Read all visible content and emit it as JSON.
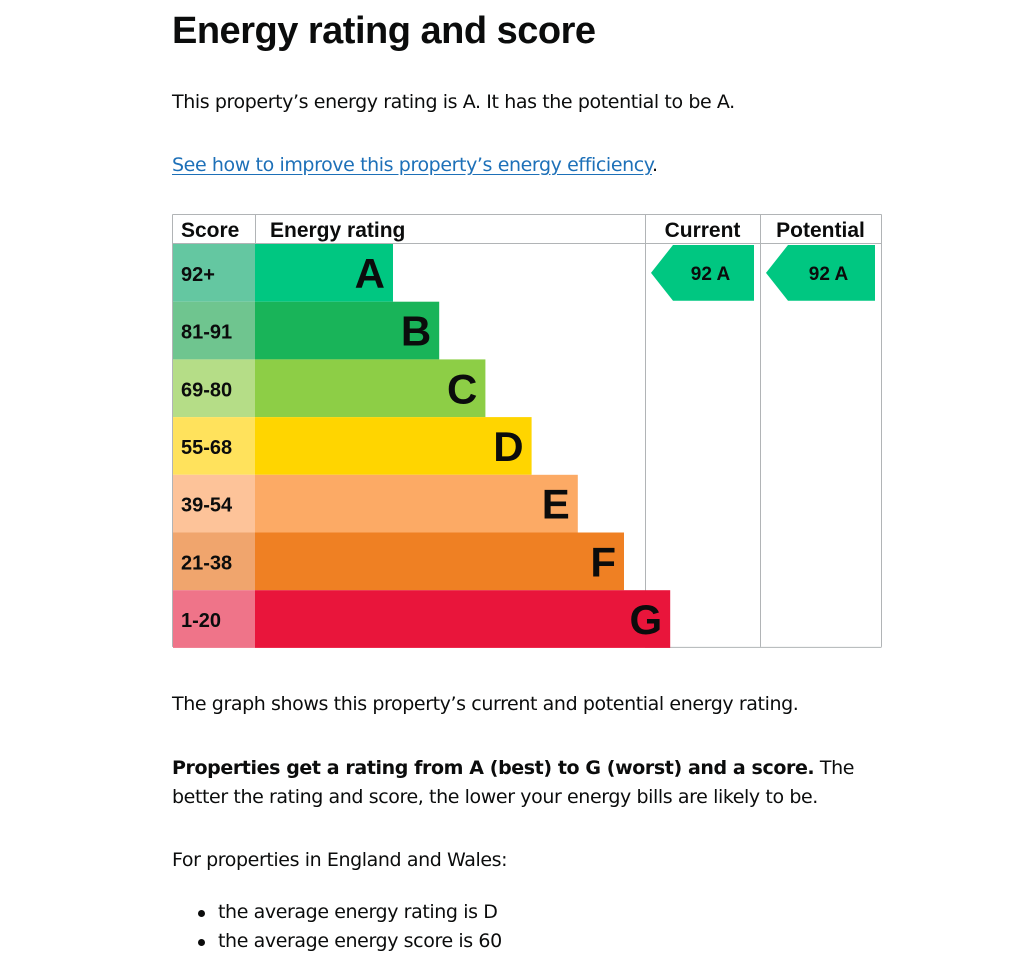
{
  "page": {
    "title": "Energy rating and score",
    "intro": "This property’s energy rating is A. It has the potential to be A.",
    "improve_link": "See how to improve this property’s energy efficiency",
    "improve_link_suffix": ".",
    "graph_caption": "The graph shows this property’s current and potential energy rating.",
    "ratings_bold": "Properties get a rating from A (best) to G (worst) and a score.",
    "ratings_rest": " The better the rating and score, the lower your energy bills are likely to be.",
    "regional_intro": "For properties in England and Wales:",
    "bullets": [
      "the average energy rating is D",
      "the average energy score is 60"
    ]
  },
  "chart_data": {
    "type": "table",
    "headers": {
      "score": "Score",
      "rating": "Energy rating",
      "current": "Current",
      "potential": "Potential"
    },
    "bands": [
      {
        "letter": "A",
        "range": "92+",
        "color": "#00c781",
        "score_bg": "#64c7a1"
      },
      {
        "letter": "B",
        "range": "81-91",
        "color": "#19b459",
        "score_bg": "#6fc58f"
      },
      {
        "letter": "C",
        "range": "69-80",
        "color": "#8dce46",
        "score_bg": "#b5dd87"
      },
      {
        "letter": "D",
        "range": "55-68",
        "color": "#ffd500",
        "score_bg": "#ffe25c"
      },
      {
        "letter": "E",
        "range": "39-54",
        "color": "#fcaa65",
        "score_bg": "#fdc399"
      },
      {
        "letter": "F",
        "range": "21-38",
        "color": "#ef8023",
        "score_bg": "#f0a56d"
      },
      {
        "letter": "G",
        "range": "1-20",
        "color": "#e9153b",
        "score_bg": "#ef7489"
      }
    ],
    "current": {
      "score": 92,
      "letter": "A",
      "label": "92  A",
      "color": "#00c781"
    },
    "potential": {
      "score": 92,
      "letter": "A",
      "label": "92  A",
      "color": "#00c781"
    }
  }
}
